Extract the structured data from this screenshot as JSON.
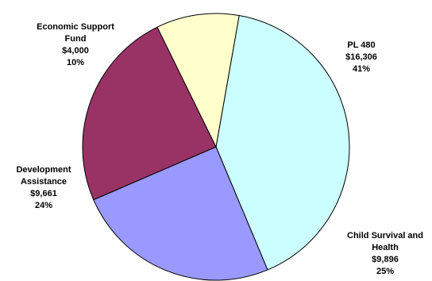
{
  "chart_data": {
    "type": "pie",
    "title": "",
    "slices": [
      {
        "label_lines": [
          "PL 480"
        ],
        "value": 16306,
        "value_text": "$16,306",
        "percent_text": "41%",
        "color": "#ccffff"
      },
      {
        "label_lines": [
          "Child Survival and",
          "Health"
        ],
        "value": 9896,
        "value_text": "$9,896",
        "percent_text": "25%",
        "color": "#9999ff"
      },
      {
        "label_lines": [
          "Development",
          "Assistance"
        ],
        "value": 9661,
        "value_text": "$9,661",
        "percent_text": "24%",
        "color": "#993366"
      },
      {
        "label_lines": [
          "Economic Support",
          "Fund"
        ],
        "value": 4000,
        "value_text": "$4,000",
        "percent_text": "10%",
        "color": "#ffffcc"
      }
    ],
    "start_angle_deg": 10,
    "edge_color": "#000000"
  }
}
